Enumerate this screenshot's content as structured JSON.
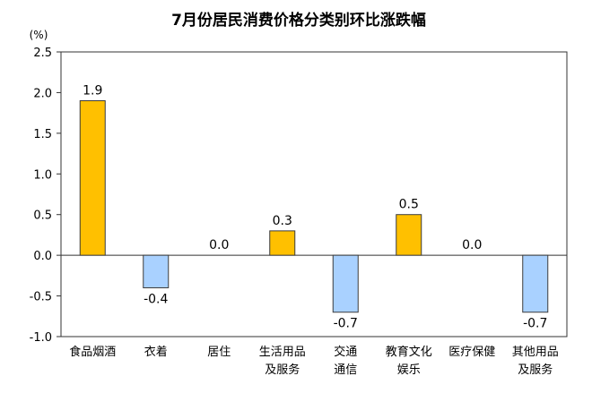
{
  "chart_data": {
    "type": "bar",
    "title": "7月份居民消费价格分类别环比涨跌幅",
    "unit_label": "(%)",
    "categories": [
      [
        "食品烟酒"
      ],
      [
        "衣着"
      ],
      [
        "居住"
      ],
      [
        "生活用品",
        "及服务"
      ],
      [
        "交通",
        "通信"
      ],
      [
        "教育文化",
        "娱乐"
      ],
      [
        "医疗保健"
      ],
      [
        "其他用品",
        "及服务"
      ]
    ],
    "values": [
      1.9,
      -0.4,
      0.0,
      0.3,
      -0.7,
      0.5,
      0.0,
      -0.7
    ],
    "value_labels": [
      "1.9",
      "-0.4",
      "0.0",
      "0.3",
      "-0.7",
      "0.5",
      "0.0",
      "-0.7"
    ],
    "ylim": [
      -1.0,
      2.5
    ],
    "yticks": [
      "2.5",
      "2.0",
      "1.5",
      "1.0",
      "0.5",
      "0.0",
      "-0.5",
      "-1.0"
    ],
    "grid": false,
    "colors": {
      "positive": "#FFC000",
      "negative": "#A9D1FF",
      "bar_stroke": "#3C3C3C",
      "axis": "#333333"
    }
  }
}
